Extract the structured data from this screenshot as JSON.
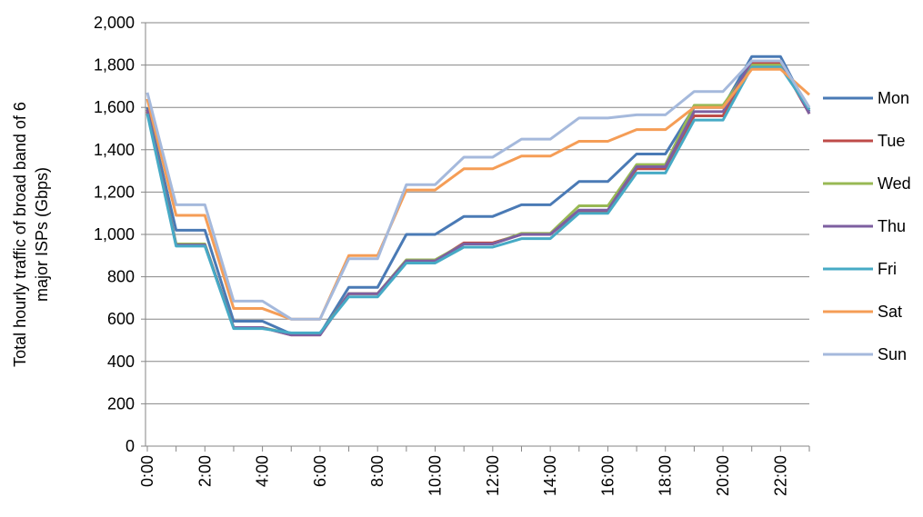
{
  "chart_data": {
    "type": "line",
    "ylabel": [
      "Total hourly traffic of broad band of 6",
      "major ISPs (Gbps)"
    ],
    "categories": [
      "0:00",
      null,
      "2:00",
      null,
      "4:00",
      null,
      "6:00",
      null,
      "8:00",
      null,
      "10:00",
      null,
      "12:00",
      null,
      "14:00",
      null,
      "16:00",
      null,
      "18:00",
      null,
      "20:00",
      null,
      "22:00",
      null
    ],
    "series": [
      {
        "name": "Mon",
        "color": "#4a7ab5",
        "values": [
          1600,
          1020,
          1020,
          590,
          590,
          530,
          530,
          750,
          750,
          1000,
          1000,
          1085,
          1085,
          1140,
          1140,
          1250,
          1250,
          1380,
          1380,
          1600,
          1600,
          1840,
          1840,
          1580
        ]
      },
      {
        "name": "Tue",
        "color": "#be4b48",
        "values": [
          1580,
          950,
          950,
          560,
          560,
          525,
          525,
          720,
          720,
          875,
          875,
          960,
          960,
          1000,
          1000,
          1110,
          1110,
          1310,
          1310,
          1560,
          1560,
          1810,
          1810,
          1570
        ]
      },
      {
        "name": "Wed",
        "color": "#98b954",
        "values": [
          1590,
          955,
          955,
          560,
          560,
          530,
          530,
          720,
          720,
          880,
          880,
          955,
          955,
          1005,
          1005,
          1135,
          1135,
          1330,
          1330,
          1610,
          1610,
          1800,
          1800,
          1590
        ]
      },
      {
        "name": "Thu",
        "color": "#7d5fa0",
        "values": [
          1590,
          950,
          950,
          560,
          560,
          525,
          525,
          720,
          720,
          875,
          875,
          955,
          955,
          1000,
          1000,
          1115,
          1115,
          1320,
          1320,
          1580,
          1580,
          1820,
          1820,
          1570
        ]
      },
      {
        "name": "Fri",
        "color": "#46aac5",
        "values": [
          1570,
          945,
          945,
          555,
          555,
          535,
          535,
          705,
          705,
          865,
          865,
          940,
          940,
          980,
          980,
          1100,
          1100,
          1290,
          1290,
          1540,
          1540,
          1790,
          1790,
          1590
        ]
      },
      {
        "name": "Sat",
        "color": "#f59d56",
        "values": [
          1640,
          1090,
          1090,
          650,
          650,
          600,
          600,
          900,
          900,
          1210,
          1210,
          1310,
          1310,
          1370,
          1370,
          1440,
          1440,
          1495,
          1495,
          1600,
          1600,
          1780,
          1780,
          1660
        ]
      },
      {
        "name": "Sun",
        "color": "#a5b9dc",
        "values": [
          1670,
          1140,
          1140,
          685,
          685,
          600,
          600,
          885,
          885,
          1235,
          1235,
          1365,
          1365,
          1450,
          1450,
          1550,
          1550,
          1565,
          1565,
          1675,
          1675,
          1820,
          1820,
          1600
        ]
      }
    ],
    "ylim": [
      0,
      2000
    ],
    "yticks": [
      0,
      200,
      400,
      600,
      800,
      {
        "value": 1000,
        "label": "1,000"
      },
      {
        "value": 1200,
        "label": "1,200"
      },
      {
        "value": 1400,
        "label": "1,400"
      },
      {
        "value": 1600,
        "label": "1,600"
      },
      {
        "value": 1800,
        "label": "1,800"
      },
      {
        "value": 2000,
        "label": "2,000"
      }
    ],
    "grid": true,
    "legend": "right"
  }
}
